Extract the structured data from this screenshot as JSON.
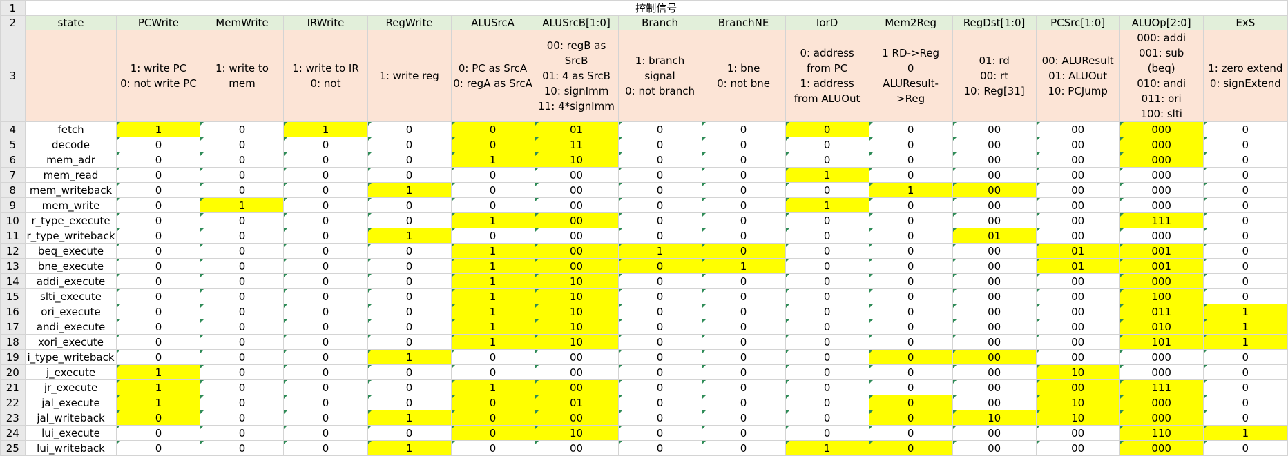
{
  "title": "控制信号",
  "row_numbers": [
    "1",
    "2",
    "3",
    "4",
    "5",
    "6",
    "7",
    "8",
    "9",
    "10",
    "11",
    "12",
    "13",
    "14",
    "15",
    "16",
    "17",
    "18",
    "19",
    "20",
    "21",
    "22",
    "23",
    "24",
    "25"
  ],
  "headers": [
    "state",
    "PCWrite",
    "MemWrite",
    "IRWrite",
    "RegWrite",
    "ALUSrcA",
    "ALUSrcB[1:0]",
    "Branch",
    "BranchNE",
    "IorD",
    "Mem2Reg",
    "RegDst[1:0]",
    "PCSrc[1:0]",
    "ALUOp[2:0]",
    "ExS"
  ],
  "descriptions": [
    [],
    [
      "1: write PC",
      "0: not write PC"
    ],
    [
      "1: write to",
      "mem"
    ],
    [
      "1: write to IR",
      "0: not"
    ],
    [
      "1: write reg"
    ],
    [
      "0: PC as SrcA",
      "0: regA as SrcA"
    ],
    [
      "00: regB as",
      "SrcB",
      "01: 4 as SrcB",
      "10: signImm",
      "11: 4*signImm"
    ],
    [
      "1: branch",
      "signal",
      "0: not branch"
    ],
    [
      "1: bne",
      "0: not bne"
    ],
    [
      "0: address",
      "from PC",
      "1: address",
      "from ALUOut"
    ],
    [
      "1 RD->Reg",
      "0",
      "ALUResult-",
      ">Reg"
    ],
    [
      "01: rd",
      "00: rt",
      "10: Reg[31]"
    ],
    [
      "00: ALUResult",
      "01: ALUOut",
      "10: PCJump"
    ],
    [
      "000: addi",
      "001: sub",
      "(beq)",
      "010: andi",
      "011: ori",
      "100: slti"
    ],
    [
      "1: zero extend",
      "0: signExtend"
    ]
  ],
  "rows": [
    {
      "state": "fetch",
      "values": [
        "1",
        "0",
        "1",
        "0",
        "0",
        "01",
        "0",
        "0",
        "0",
        "0",
        "00",
        "00",
        "000",
        "0"
      ],
      "highlight": [
        1,
        0,
        1,
        0,
        1,
        1,
        0,
        0,
        1,
        0,
        0,
        0,
        1,
        0
      ]
    },
    {
      "state": "decode",
      "values": [
        "0",
        "0",
        "0",
        "0",
        "0",
        "11",
        "0",
        "0",
        "0",
        "0",
        "00",
        "00",
        "000",
        "0"
      ],
      "highlight": [
        0,
        0,
        0,
        0,
        1,
        1,
        0,
        0,
        0,
        0,
        0,
        0,
        1,
        0
      ]
    },
    {
      "state": "mem_adr",
      "values": [
        "0",
        "0",
        "0",
        "0",
        "1",
        "10",
        "0",
        "0",
        "0",
        "0",
        "00",
        "00",
        "000",
        "0"
      ],
      "highlight": [
        0,
        0,
        0,
        0,
        1,
        1,
        0,
        0,
        0,
        0,
        0,
        0,
        1,
        0
      ]
    },
    {
      "state": "mem_read",
      "values": [
        "0",
        "0",
        "0",
        "0",
        "0",
        "00",
        "0",
        "0",
        "1",
        "0",
        "00",
        "00",
        "000",
        "0"
      ],
      "highlight": [
        0,
        0,
        0,
        0,
        0,
        0,
        0,
        0,
        1,
        0,
        0,
        0,
        0,
        0
      ]
    },
    {
      "state": "mem_writeback",
      "values": [
        "0",
        "0",
        "0",
        "1",
        "0",
        "00",
        "0",
        "0",
        "0",
        "1",
        "00",
        "00",
        "000",
        "0"
      ],
      "highlight": [
        0,
        0,
        0,
        1,
        0,
        0,
        0,
        0,
        0,
        1,
        1,
        0,
        0,
        0
      ]
    },
    {
      "state": "mem_write",
      "values": [
        "0",
        "1",
        "0",
        "0",
        "0",
        "00",
        "0",
        "0",
        "1",
        "0",
        "00",
        "00",
        "000",
        "0"
      ],
      "highlight": [
        0,
        1,
        0,
        0,
        0,
        0,
        0,
        0,
        1,
        0,
        0,
        0,
        0,
        0
      ]
    },
    {
      "state": "r_type_execute",
      "values": [
        "0",
        "0",
        "0",
        "0",
        "1",
        "00",
        "0",
        "0",
        "0",
        "0",
        "00",
        "00",
        "111",
        "0"
      ],
      "highlight": [
        0,
        0,
        0,
        0,
        1,
        1,
        0,
        0,
        0,
        0,
        0,
        0,
        1,
        0
      ]
    },
    {
      "state": "r_type_writeback",
      "values": [
        "0",
        "0",
        "0",
        "1",
        "0",
        "00",
        "0",
        "0",
        "0",
        "0",
        "01",
        "00",
        "000",
        "0"
      ],
      "highlight": [
        0,
        0,
        0,
        1,
        0,
        0,
        0,
        0,
        0,
        0,
        1,
        0,
        0,
        0
      ]
    },
    {
      "state": "beq_execute",
      "values": [
        "0",
        "0",
        "0",
        "0",
        "1",
        "00",
        "1",
        "0",
        "0",
        "0",
        "00",
        "01",
        "001",
        "0"
      ],
      "highlight": [
        0,
        0,
        0,
        0,
        1,
        1,
        1,
        1,
        0,
        0,
        0,
        1,
        1,
        0
      ]
    },
    {
      "state": "bne_execute",
      "values": [
        "0",
        "0",
        "0",
        "0",
        "1",
        "00",
        "0",
        "1",
        "0",
        "0",
        "00",
        "01",
        "001",
        "0"
      ],
      "highlight": [
        0,
        0,
        0,
        0,
        1,
        1,
        1,
        1,
        0,
        0,
        0,
        1,
        1,
        0
      ]
    },
    {
      "state": "addi_execute",
      "values": [
        "0",
        "0",
        "0",
        "0",
        "1",
        "10",
        "0",
        "0",
        "0",
        "0",
        "00",
        "00",
        "000",
        "0"
      ],
      "highlight": [
        0,
        0,
        0,
        0,
        1,
        1,
        0,
        0,
        0,
        0,
        0,
        0,
        1,
        0
      ]
    },
    {
      "state": "slti_execute",
      "values": [
        "0",
        "0",
        "0",
        "0",
        "1",
        "10",
        "0",
        "0",
        "0",
        "0",
        "00",
        "00",
        "100",
        "0"
      ],
      "highlight": [
        0,
        0,
        0,
        0,
        1,
        1,
        0,
        0,
        0,
        0,
        0,
        0,
        1,
        0
      ]
    },
    {
      "state": "ori_execute",
      "values": [
        "0",
        "0",
        "0",
        "0",
        "1",
        "10",
        "0",
        "0",
        "0",
        "0",
        "00",
        "00",
        "011",
        "1"
      ],
      "highlight": [
        0,
        0,
        0,
        0,
        1,
        1,
        0,
        0,
        0,
        0,
        0,
        0,
        1,
        1
      ]
    },
    {
      "state": "andi_execute",
      "values": [
        "0",
        "0",
        "0",
        "0",
        "1",
        "10",
        "0",
        "0",
        "0",
        "0",
        "00",
        "00",
        "010",
        "1"
      ],
      "highlight": [
        0,
        0,
        0,
        0,
        1,
        1,
        0,
        0,
        0,
        0,
        0,
        0,
        1,
        1
      ]
    },
    {
      "state": "xori_execute",
      "values": [
        "0",
        "0",
        "0",
        "0",
        "1",
        "10",
        "0",
        "0",
        "0",
        "0",
        "00",
        "00",
        "101",
        "1"
      ],
      "highlight": [
        0,
        0,
        0,
        0,
        1,
        1,
        0,
        0,
        0,
        0,
        0,
        0,
        1,
        1
      ]
    },
    {
      "state": "i_type_writeback",
      "values": [
        "0",
        "0",
        "0",
        "1",
        "0",
        "00",
        "0",
        "0",
        "0",
        "0",
        "00",
        "00",
        "000",
        "0"
      ],
      "highlight": [
        0,
        0,
        0,
        1,
        0,
        0,
        0,
        0,
        0,
        1,
        1,
        0,
        0,
        0
      ]
    },
    {
      "state": "j_execute",
      "values": [
        "1",
        "0",
        "0",
        "0",
        "0",
        "00",
        "0",
        "0",
        "0",
        "0",
        "00",
        "10",
        "000",
        "0"
      ],
      "highlight": [
        1,
        0,
        0,
        0,
        0,
        0,
        0,
        0,
        0,
        0,
        0,
        1,
        0,
        0
      ]
    },
    {
      "state": "jr_execute",
      "values": [
        "1",
        "0",
        "0",
        "0",
        "1",
        "00",
        "0",
        "0",
        "0",
        "0",
        "00",
        "00",
        "111",
        "0"
      ],
      "highlight": [
        1,
        0,
        0,
        0,
        1,
        1,
        0,
        0,
        0,
        0,
        0,
        1,
        1,
        0
      ]
    },
    {
      "state": "jal_execute",
      "values": [
        "1",
        "0",
        "0",
        "0",
        "0",
        "01",
        "0",
        "0",
        "0",
        "0",
        "00",
        "10",
        "000",
        "0"
      ],
      "highlight": [
        1,
        0,
        0,
        0,
        1,
        1,
        0,
        0,
        0,
        1,
        0,
        1,
        1,
        0
      ]
    },
    {
      "state": "jal_writeback",
      "values": [
        "0",
        "0",
        "0",
        "1",
        "0",
        "00",
        "0",
        "0",
        "0",
        "0",
        "10",
        "10",
        "000",
        "0"
      ],
      "highlight": [
        1,
        0,
        0,
        1,
        1,
        1,
        0,
        0,
        0,
        1,
        1,
        1,
        1,
        0
      ]
    },
    {
      "state": "lui_execute",
      "values": [
        "0",
        "0",
        "0",
        "0",
        "0",
        "10",
        "0",
        "0",
        "0",
        "0",
        "00",
        "00",
        "110",
        "1"
      ],
      "highlight": [
        0,
        0,
        0,
        0,
        1,
        1,
        0,
        0,
        0,
        0,
        0,
        0,
        1,
        1
      ]
    },
    {
      "state": "lui_writeback",
      "values": [
        "0",
        "0",
        "0",
        "1",
        "0",
        "00",
        "0",
        "0",
        "1",
        "0",
        "00",
        "00",
        "000",
        "0"
      ],
      "highlight": [
        0,
        0,
        0,
        1,
        0,
        0,
        0,
        0,
        1,
        1,
        0,
        0,
        1,
        0
      ]
    }
  ]
}
